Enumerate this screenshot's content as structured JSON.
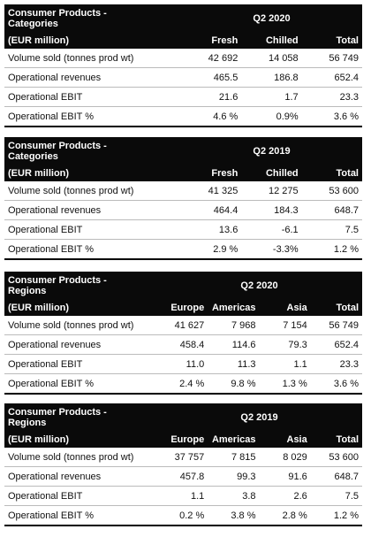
{
  "tables": [
    {
      "title": [
        "Consumer Products -",
        "Categories"
      ],
      "period": "Q2 2020",
      "unit": "(EUR million)",
      "columns": [
        "Fresh",
        "Chilled",
        "Total"
      ],
      "rows": [
        {
          "label": "Volume sold (tonnes prod wt)",
          "values": [
            "42 692",
            "14 058",
            "56 749"
          ]
        },
        {
          "label": "Operational revenues",
          "values": [
            "465.5",
            "186.8",
            "652.4"
          ]
        },
        {
          "label": "Operational EBIT",
          "values": [
            "21.6",
            "1.7",
            "23.3"
          ]
        },
        {
          "label": "Operational EBIT %",
          "values": [
            "4.6 %",
            "0.9%",
            "3.6 %"
          ]
        }
      ]
    },
    {
      "title": [
        "Consumer Products -",
        "Categories"
      ],
      "period": "Q2 2019",
      "unit": "(EUR million)",
      "columns": [
        "Fresh",
        "Chilled",
        "Total"
      ],
      "rows": [
        {
          "label": "Volume sold (tonnes prod wt)",
          "values": [
            "41 325",
            "12 275",
            "53 600"
          ]
        },
        {
          "label": "Operational revenues",
          "values": [
            "464.4",
            "184.3",
            "648.7"
          ]
        },
        {
          "label": "Operational EBIT",
          "values": [
            "13.6",
            "-6.1",
            "7.5"
          ]
        },
        {
          "label": "Operational EBIT %",
          "values": [
            "2.9 %",
            "-3.3%",
            "1.2 %"
          ]
        }
      ]
    },
    {
      "title": [
        "Consumer Products -",
        "Regions"
      ],
      "period": "Q2 2020",
      "unit": "(EUR million)",
      "columns": [
        "Europe",
        "Americas",
        "Asia",
        "Total"
      ],
      "rows": [
        {
          "label": "Volume sold (tonnes prod wt)",
          "values": [
            "41 627",
            "7 968",
            "7 154",
            "56 749"
          ]
        },
        {
          "label": "Operational revenues",
          "values": [
            "458.4",
            "114.6",
            "79.3",
            "652.4"
          ]
        },
        {
          "label": "Operational EBIT",
          "values": [
            "11.0",
            "11.3",
            "1.1",
            "23.3"
          ]
        },
        {
          "label": "Operational EBIT %",
          "values": [
            "2.4 %",
            "9.8 %",
            "1.3 %",
            "3.6 %"
          ]
        }
      ]
    },
    {
      "title": [
        "Consumer Products -",
        "Regions"
      ],
      "period": "Q2 2019",
      "unit": "(EUR million)",
      "columns": [
        "Europe",
        "Americas",
        "Asia",
        "Total"
      ],
      "rows": [
        {
          "label": "Volume sold (tonnes prod wt)",
          "values": [
            "37 757",
            "7 815",
            "8 029",
            "53 600"
          ]
        },
        {
          "label": "Operational revenues",
          "values": [
            "457.8",
            "99.3",
            "91.6",
            "648.7"
          ]
        },
        {
          "label": "Operational EBIT",
          "values": [
            "1.1",
            "3.8",
            "2.6",
            "7.5"
          ]
        },
        {
          "label": "Operational EBIT %",
          "values": [
            "0.2 %",
            "3.8 %",
            "2.8 %",
            "1.2 %"
          ]
        }
      ]
    }
  ]
}
